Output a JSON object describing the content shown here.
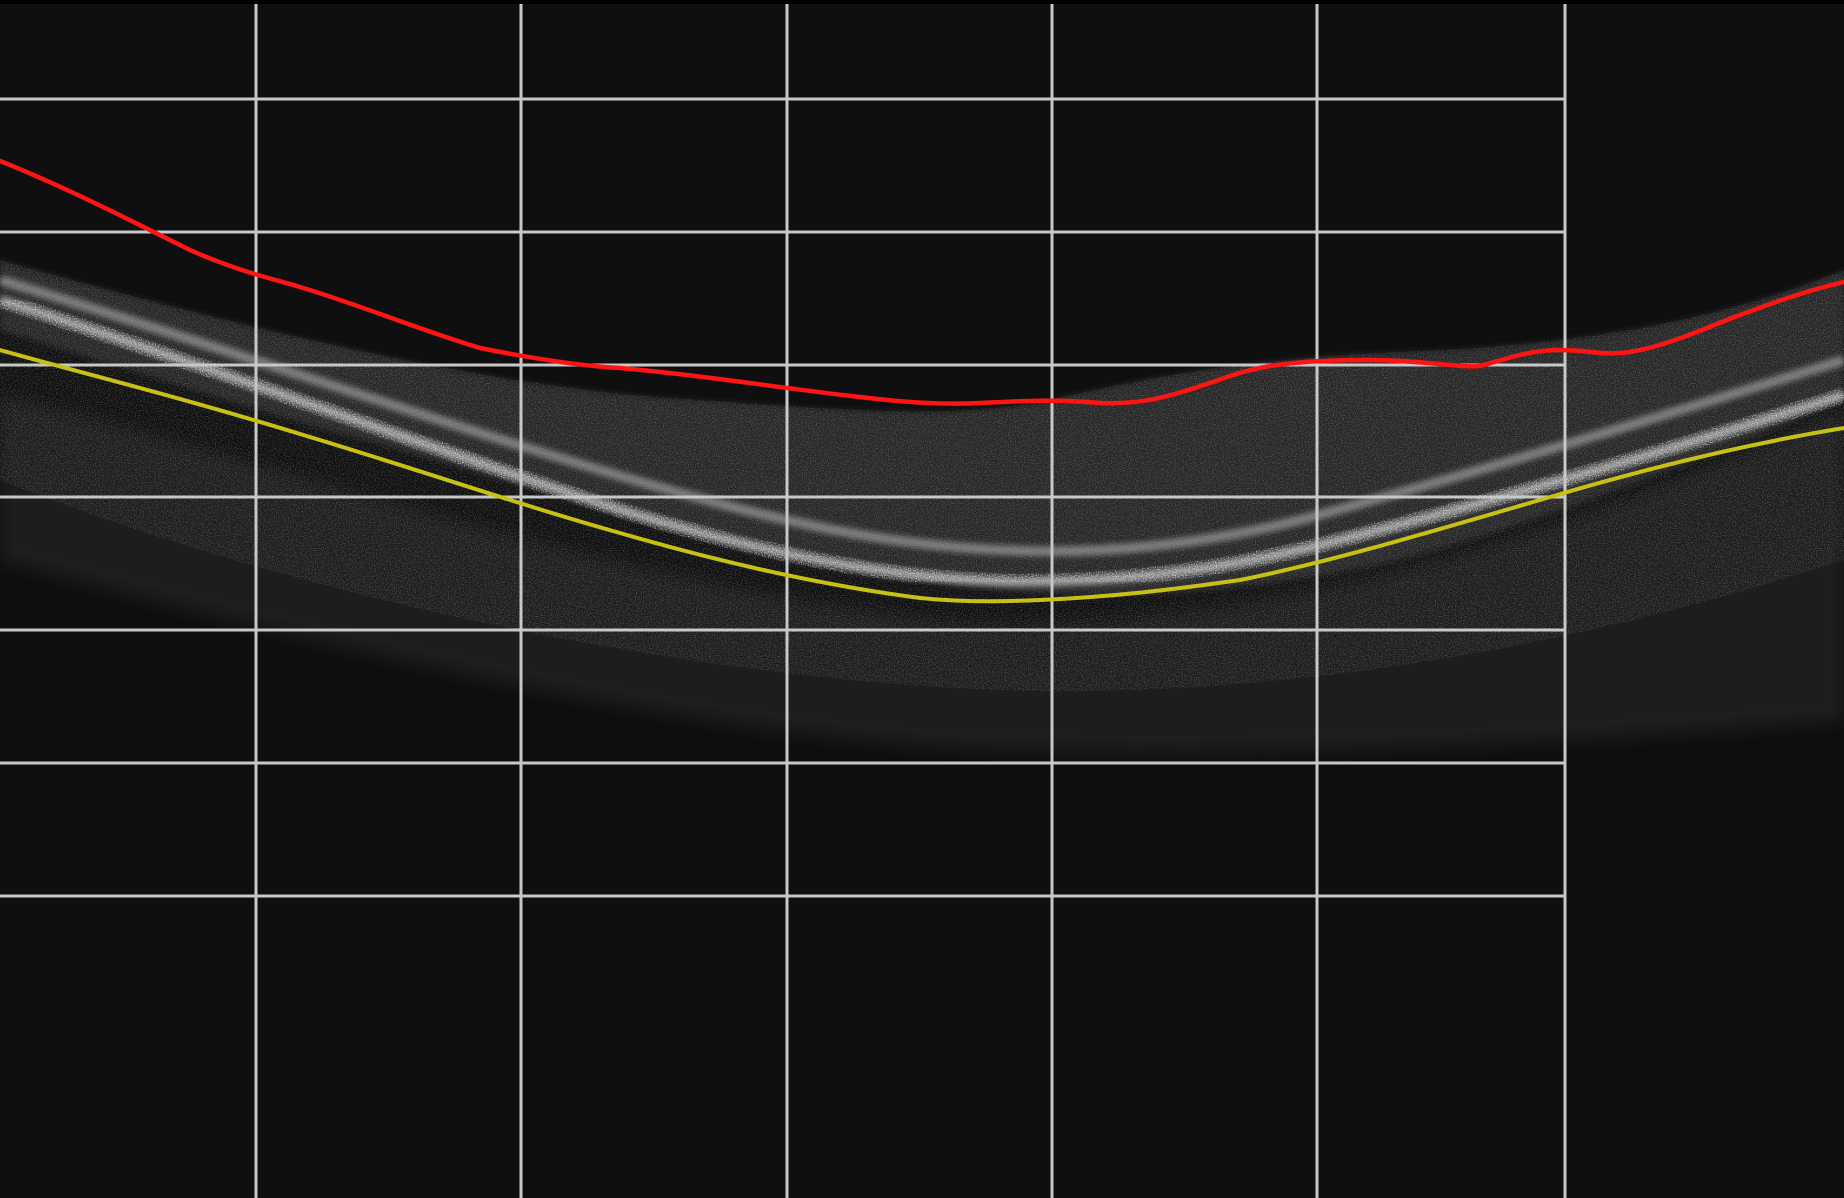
{
  "image": {
    "kind": "OCT retinal B-scan with overlaid grid and two boundary tracings",
    "background_color": "#0f0f10",
    "tissue_color": "#d8d8d8"
  },
  "grid": {
    "color": "#c8c8c8",
    "columns": 6,
    "rows": 8
  },
  "overlays": [
    {
      "name": "upper-boundary",
      "color": "#ff1414"
    },
    {
      "name": "lower-boundary",
      "color": "#c8c014"
    }
  ]
}
